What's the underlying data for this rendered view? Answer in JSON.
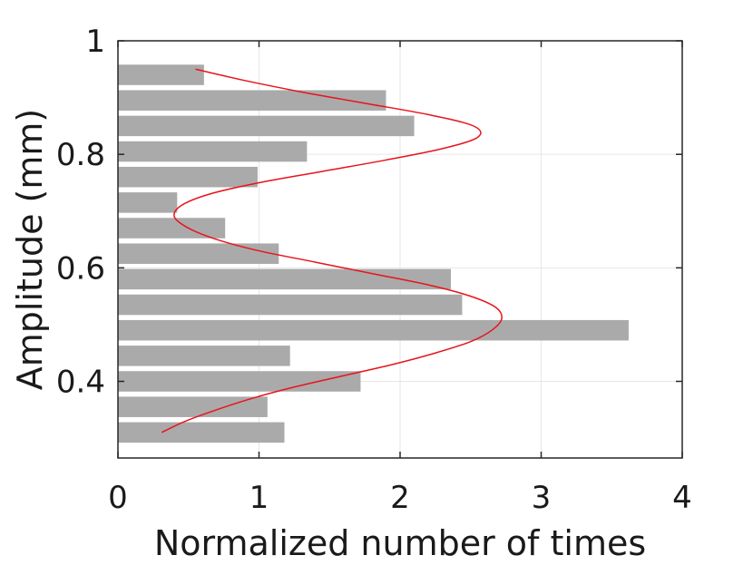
{
  "chart_data": {
    "type": "bar",
    "orientation": "horizontal",
    "title": "",
    "xlabel": "Normalized number of times",
    "ylabel": "Amplitude (mm)",
    "xlim": [
      0,
      4
    ],
    "ylim": [
      0.265,
      1.0
    ],
    "xticks": [
      0,
      1,
      2,
      3,
      4
    ],
    "yticks": [
      0.4,
      0.6,
      0.8,
      1
    ],
    "xtick_labels": [
      "0",
      "1",
      "2",
      "3",
      "4"
    ],
    "ytick_labels": [
      "0.4",
      "0.6",
      "0.8",
      "1"
    ],
    "grid": true,
    "bar_color": "#aaaaaa",
    "curve_color": "#e8141c",
    "bars": {
      "amplitude": [
        0.31,
        0.355,
        0.4,
        0.445,
        0.49,
        0.535,
        0.58,
        0.625,
        0.67,
        0.715,
        0.76,
        0.805,
        0.85,
        0.895,
        0.94
      ],
      "count": [
        1.18,
        1.06,
        1.72,
        1.22,
        3.62,
        2.44,
        2.36,
        1.14,
        0.76,
        0.42,
        0.99,
        1.34,
        2.1,
        1.9,
        0.61
      ]
    },
    "fitted_curve": {
      "amplitude": [
        0.31,
        0.33,
        0.35,
        0.37,
        0.39,
        0.41,
        0.43,
        0.45,
        0.47,
        0.49,
        0.51,
        0.53,
        0.55,
        0.57,
        0.59,
        0.61,
        0.63,
        0.65,
        0.67,
        0.69,
        0.71,
        0.73,
        0.75,
        0.77,
        0.79,
        0.81,
        0.83,
        0.85,
        0.87,
        0.89,
        0.91,
        0.93,
        0.95
      ],
      "count": [
        0.31,
        0.48,
        0.7,
        0.95,
        1.25,
        1.6,
        1.95,
        2.25,
        2.5,
        2.65,
        2.72,
        2.68,
        2.5,
        2.2,
        1.8,
        1.4,
        1.0,
        0.7,
        0.5,
        0.4,
        0.45,
        0.65,
        1.0,
        1.45,
        1.9,
        2.3,
        2.55,
        2.52,
        2.2,
        1.75,
        1.3,
        0.9,
        0.55
      ]
    }
  }
}
